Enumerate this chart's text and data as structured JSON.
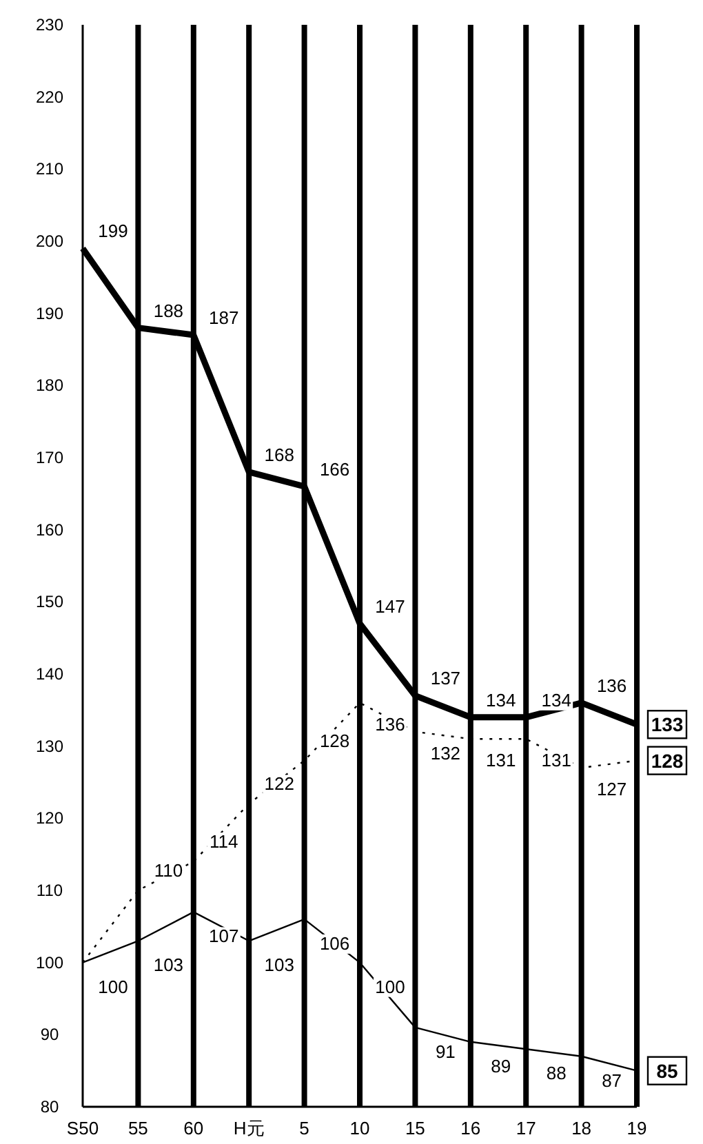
{
  "chart_data": {
    "type": "line",
    "categories": [
      "S50",
      "55",
      "60",
      "H元",
      "5",
      "10",
      "15",
      "16",
      "17",
      "18",
      "19"
    ],
    "ylim": [
      80,
      230
    ],
    "yticks": [
      80,
      90,
      100,
      110,
      120,
      130,
      140,
      150,
      160,
      170,
      180,
      190,
      200,
      210,
      220,
      230
    ],
    "grid": "x",
    "marker": "none",
    "series": [
      {
        "color": "#000000",
        "line_style": "solid",
        "values": [
          199,
          188,
          187,
          168,
          166,
          147,
          137,
          134,
          134,
          136,
          133
        ],
        "value_labels": [
          "199",
          "188",
          "187",
          "168",
          "166",
          "147",
          "137",
          "134",
          "134",
          "136",
          "133"
        ]
      },
      {
        "color": "#000000",
        "line_style": "dotted",
        "values": [
          100,
          110,
          114,
          122,
          128,
          136,
          132,
          131,
          131,
          127,
          128
        ],
        "value_labels": [
          null,
          "110",
          "114",
          "122",
          "128",
          "136",
          "132",
          "131",
          "131",
          "127",
          "128"
        ]
      },
      {
        "color": "#000000",
        "line_style": "solid",
        "values": [
          100,
          103,
          107,
          103,
          106,
          100,
          91,
          89,
          88,
          87,
          85
        ],
        "value_labels": [
          "100",
          "103",
          "107",
          "103",
          "106",
          "100",
          "91",
          "89",
          "88",
          "87",
          "85"
        ]
      }
    ]
  }
}
